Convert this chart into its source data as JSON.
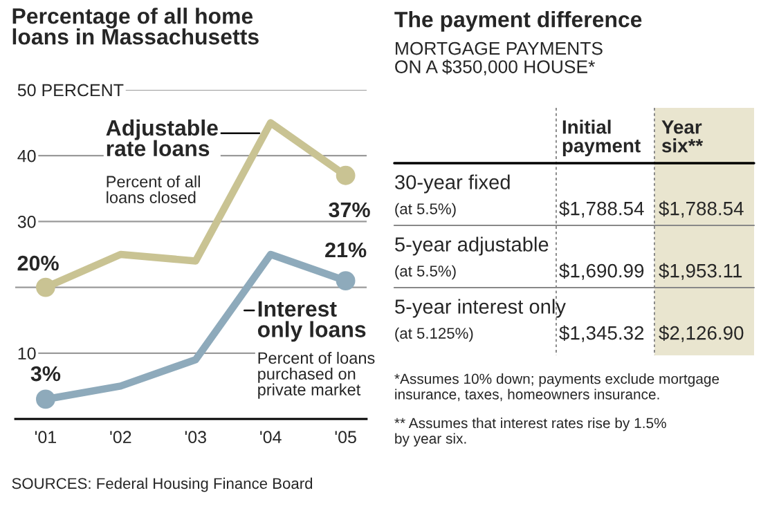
{
  "chart_data": [
    {
      "type": "line",
      "title": "Percentage of all home loans in Massachusetts",
      "categories": [
        "'01",
        "'02",
        "'03",
        "'04",
        "'05"
      ],
      "series": [
        {
          "name": "Adjustable rate loans",
          "color": "#c9c393",
          "values": [
            20,
            25,
            24,
            45,
            37
          ],
          "value_labels": [
            "20%",
            null,
            null,
            null,
            "37%"
          ]
        },
        {
          "name": "Interest only loans",
          "color": "#8eaabb",
          "values": [
            3,
            5,
            9,
            25,
            21
          ],
          "value_labels": [
            "3%",
            null,
            null,
            null,
            "21%"
          ]
        }
      ],
      "ylim": [
        0,
        50
      ],
      "yticks": [
        {
          "value": 0,
          "label": null
        },
        10,
        {
          "value": 20,
          "label": null
        },
        30,
        40,
        {
          "value": 50,
          "label": "50 PERCENT"
        }
      ],
      "grid": "y",
      "legend": false,
      "line_style": "solid",
      "annotations": [
        "Percent of all loans closed",
        "Percent of loans purchased on private market",
        "SOURCES: Federal Housing Finance Board"
      ]
    },
    {
      "type": "other",
      "title": "The payment difference",
      "subtitle": "MORTGAGE PAYMENTS ON A $350,000 HOUSE*",
      "annotations": [
        "Initial payment",
        "Year six**",
        "30-year fixed",
        "(at 5.5%)",
        "$1,788.54",
        "$1,788.54",
        "5-year adjustable",
        "(at 5.5%)",
        "$1,690.99",
        "$1,953.11",
        "5-year interest only",
        "(at 5.125%)",
        "$1,345.32",
        "$2,126.90",
        "*Assumes 10% down; payments exclude mortgage insurance, taxes, homeowners insurance.",
        "** Assumes that interest rates rise by 1.5% by year six."
      ]
    }
  ]
}
